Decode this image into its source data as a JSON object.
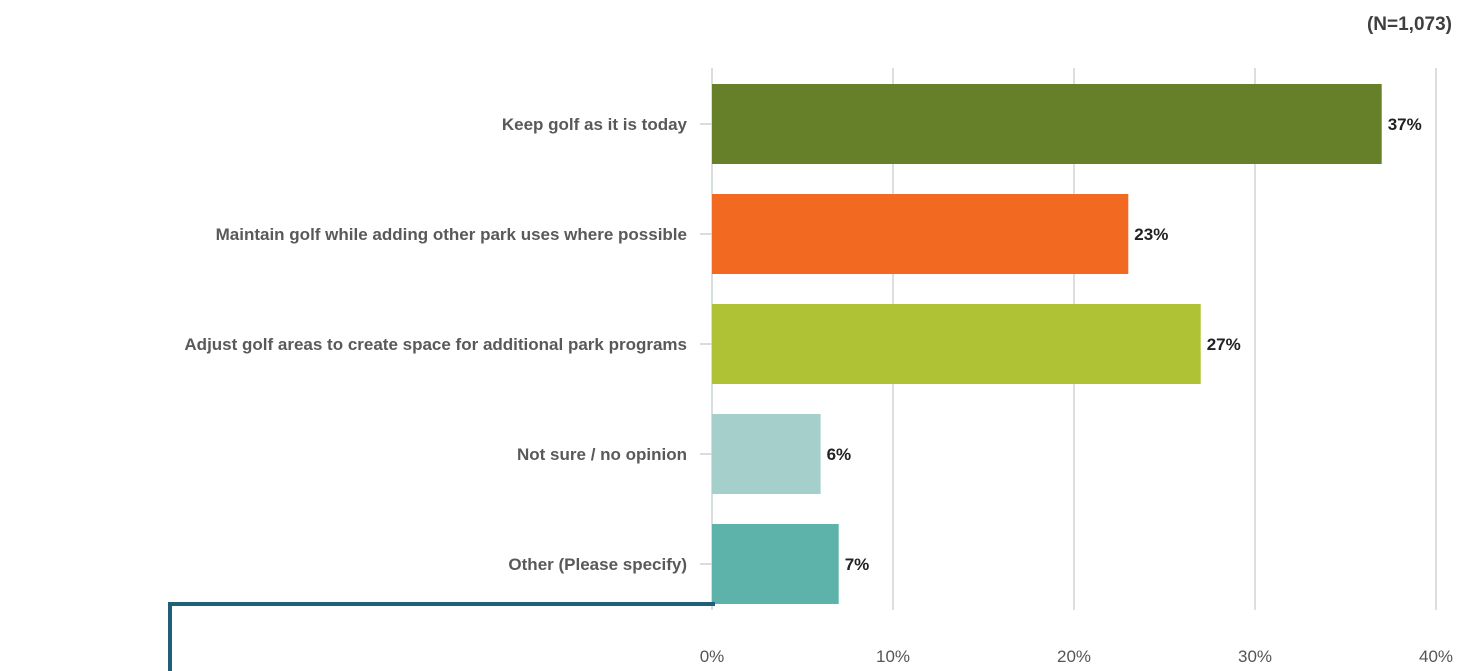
{
  "note": "(N=1,073)",
  "chart_data": {
    "type": "bar",
    "orientation": "horizontal",
    "categories": [
      "Keep golf as it is today",
      "Maintain golf while adding other park uses where possible",
      "Adjust golf areas to create space for additional park programs",
      "Not sure / no opinion",
      "Other (Please specify)"
    ],
    "values": [
      37,
      23,
      27,
      6,
      7
    ],
    "data_labels": [
      "37%",
      "23%",
      "27%",
      "6%",
      "7%"
    ],
    "colors": [
      "#667f29",
      "#f26a22",
      "#afc134",
      "#a4cfca",
      "#5db3a9"
    ],
    "xlim": [
      0,
      40
    ],
    "x_ticks": [
      0,
      10,
      20,
      30,
      40
    ],
    "x_tick_labels": [
      "0%",
      "10%",
      "20%",
      "30%",
      "40%"
    ],
    "grid": true,
    "legend": "none"
  }
}
